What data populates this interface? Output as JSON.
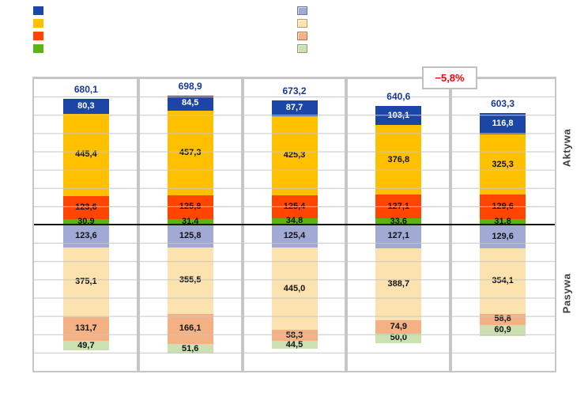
{
  "chart_data": {
    "type": "bar",
    "subtype": "mirrored-stacked-balance",
    "columns": 5,
    "categories": [
      "",
      "",
      "",
      "",
      ""
    ],
    "totals": [
      680.1,
      698.9,
      673.2,
      640.6,
      603.3
    ],
    "totals_display": [
      "680,1",
      "698,9",
      "673,2",
      "640,6",
      "603,3"
    ],
    "totals_color": "#17379E",
    "aktywa": {
      "label": "Aktywa",
      "series": [
        {
          "name": "dark-blue-segment",
          "color": "#1C45A8",
          "label_color": "#FFFFFF",
          "values": [
            80.3,
            84.5,
            87.7,
            103.1,
            116.8
          ]
        },
        {
          "name": "gold-segment",
          "color": "#FFC000",
          "label_color": "#141414",
          "values": [
            445.4,
            457.3,
            425.3,
            376.8,
            325.3
          ]
        },
        {
          "name": "orange-red-segment",
          "color": "#FF4500",
          "label_color": "#141414",
          "values": [
            123.6,
            125.8,
            125.4,
            127.1,
            129.6
          ]
        },
        {
          "name": "green-segment",
          "color": "#5BB414",
          "label_color": "#141414",
          "values": [
            30.9,
            31.4,
            34.8,
            33.6,
            31.8
          ]
        }
      ]
    },
    "pasywa": {
      "label": "Pasywa",
      "series": [
        {
          "name": "lavender-segment",
          "color": "#A1AAD4",
          "label_color": "#141414",
          "values": [
            123.6,
            125.8,
            125.4,
            127.1,
            129.6
          ]
        },
        {
          "name": "cream-segment",
          "color": "#FCE2AE",
          "label_color": "#141414",
          "values": [
            375.1,
            355.5,
            445.0,
            388.7,
            354.1
          ]
        },
        {
          "name": "salmon-segment",
          "color": "#F4B183",
          "label_color": "#141414",
          "values": [
            131.7,
            166.1,
            58.3,
            74.9,
            58.8
          ]
        },
        {
          "name": "light-green-segment",
          "color": "#CBE1B1",
          "label_color": "#141414",
          "values": [
            49.7,
            51.6,
            44.5,
            50.0,
            60.9
          ]
        }
      ]
    },
    "annotation": {
      "text": "−5,8%",
      "color": "#FF0000"
    },
    "grid": {
      "rows": 16,
      "line_color": "#C6C6C6",
      "midline_color": "#161616"
    },
    "legend_position": "top",
    "value_decimal_separator": ","
  }
}
